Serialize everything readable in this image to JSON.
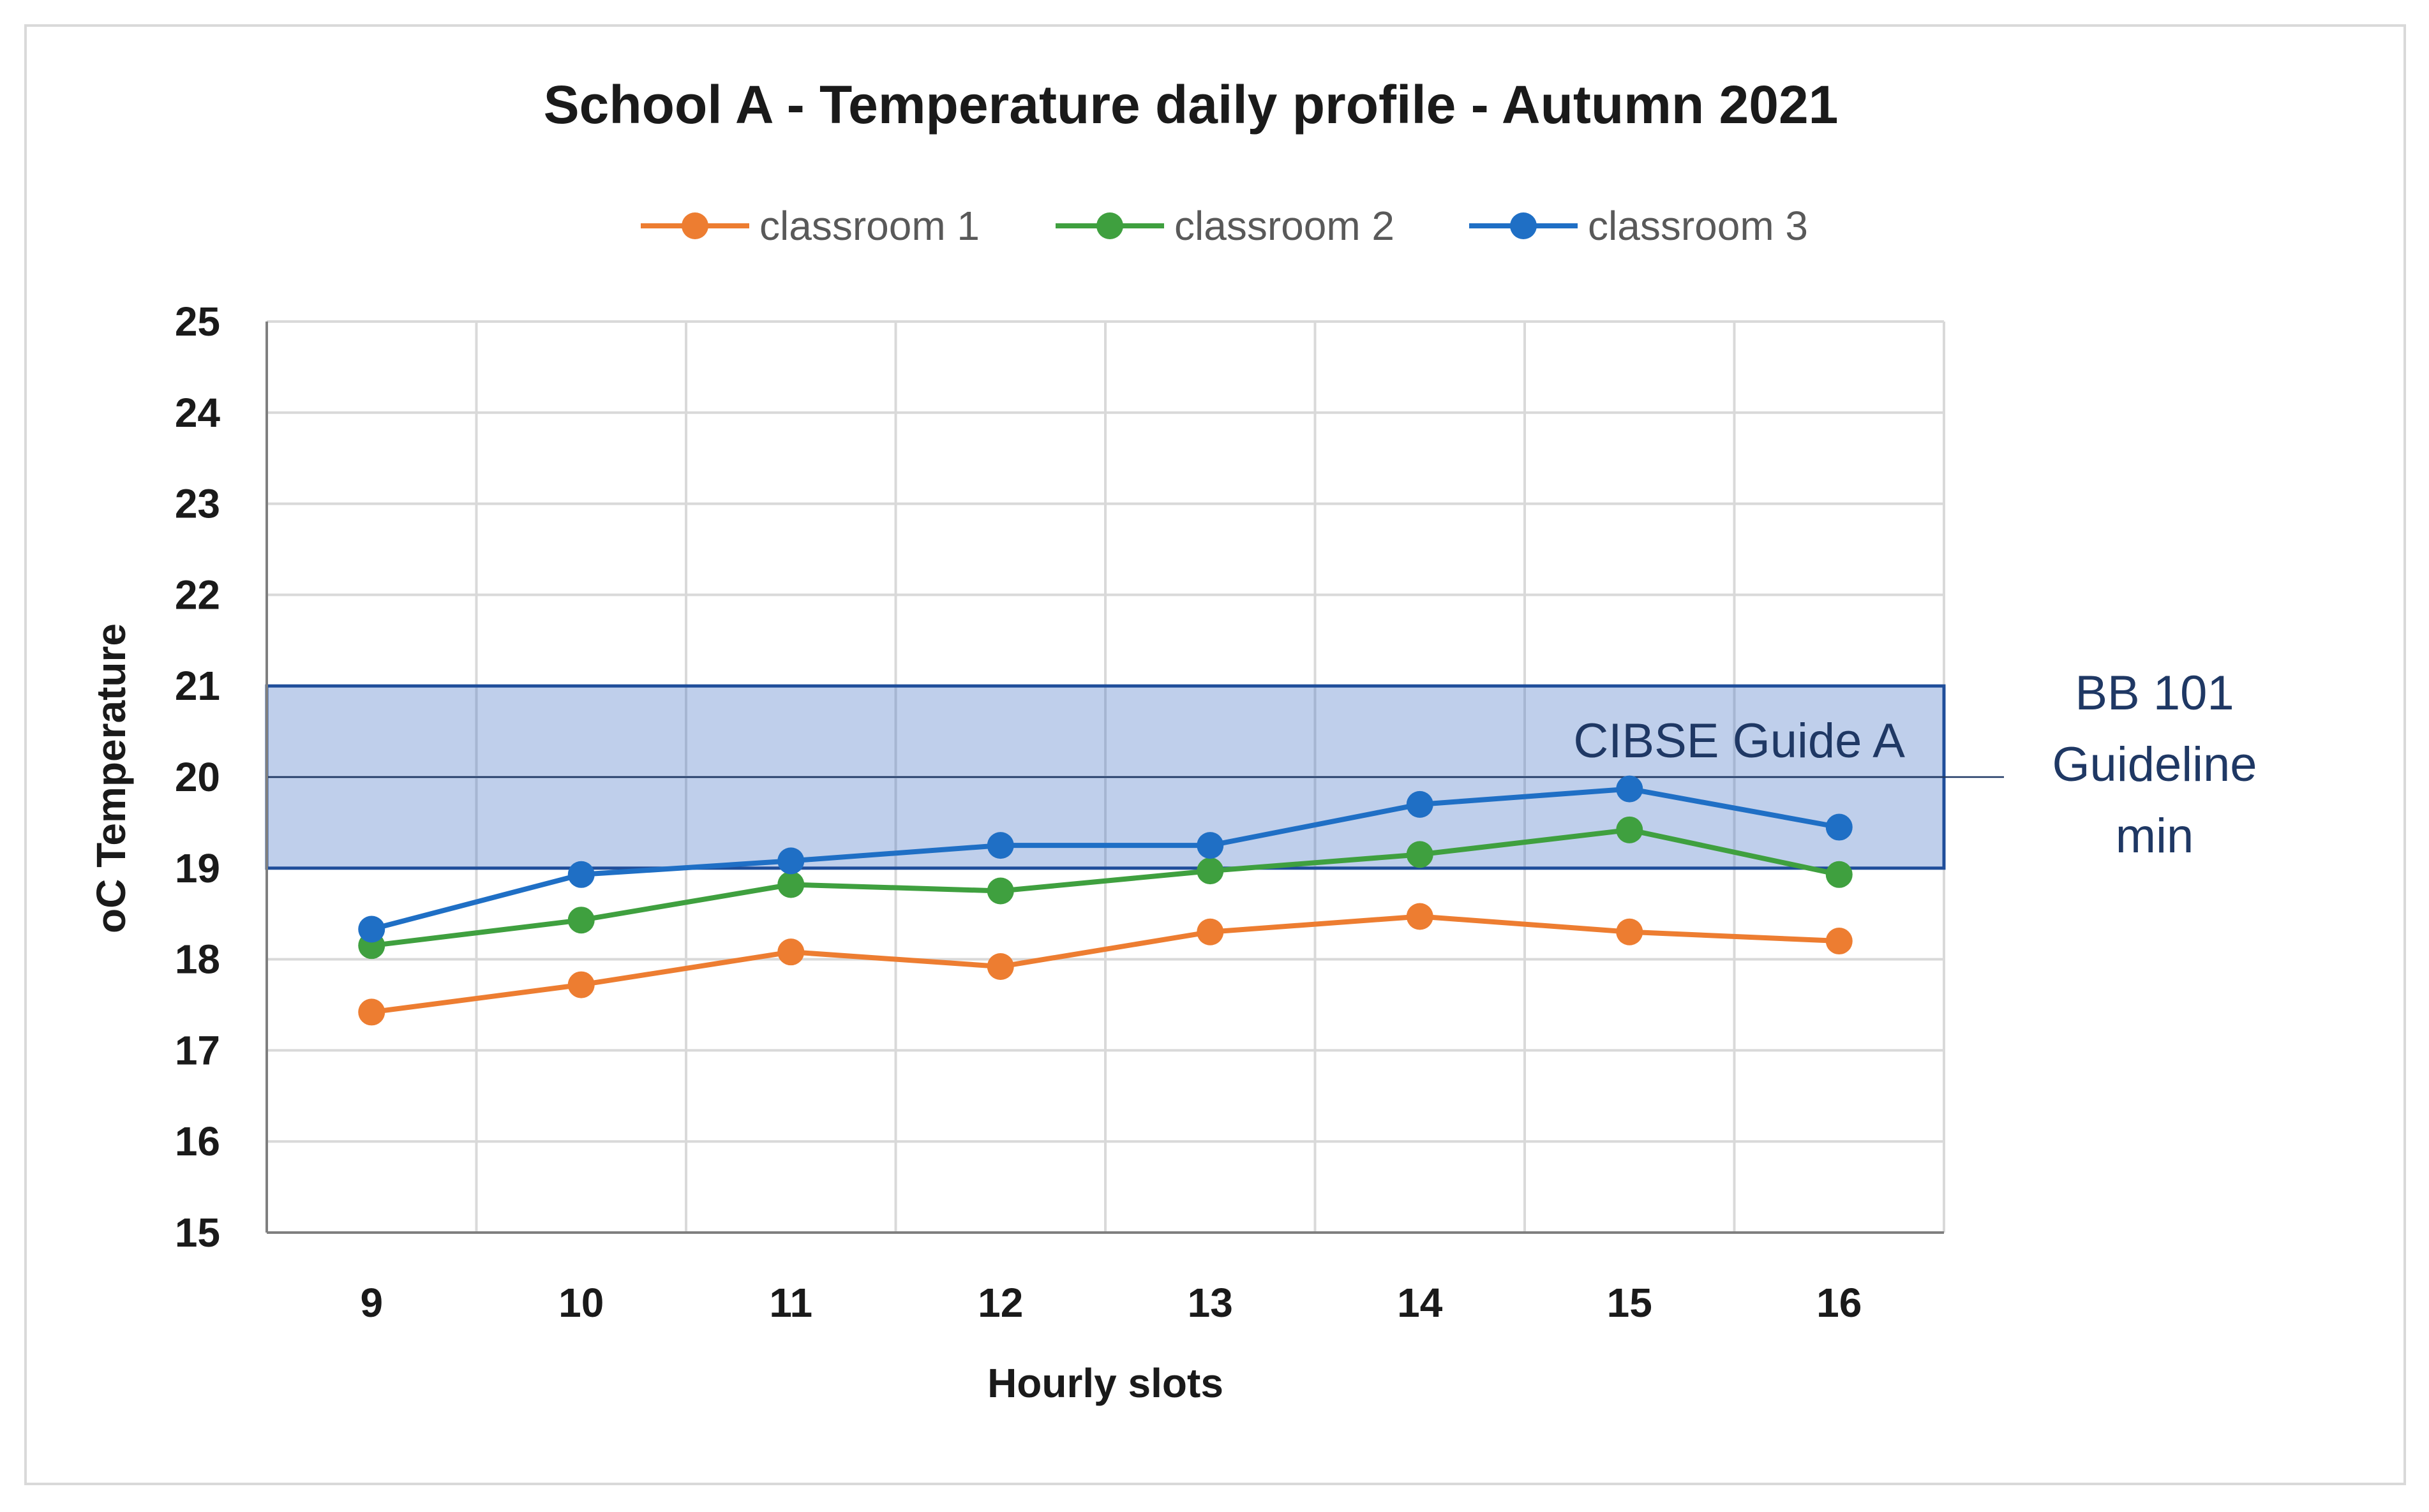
{
  "chart_data": {
    "type": "line",
    "title": "School A - Temperature daily profile - Autumn 2021",
    "xlabel": "Hourly slots",
    "ylabel": "oC Temperature",
    "categories": [
      "9",
      "10",
      "11",
      "12",
      "13",
      "14",
      "15",
      "16"
    ],
    "ylim": [
      15,
      25
    ],
    "yticks": [
      "15",
      "16",
      "17",
      "18",
      "19",
      "20",
      "21",
      "22",
      "23",
      "24",
      "25"
    ],
    "grid": true,
    "legend_position": "top-center",
    "series": [
      {
        "name": "classroom 1",
        "color": "#ed7d31",
        "values": [
          17.42,
          17.72,
          18.08,
          17.92,
          18.3,
          18.47,
          18.3,
          18.2
        ]
      },
      {
        "name": "classroom 2",
        "color": "#3fa03f",
        "values": [
          18.15,
          18.43,
          18.82,
          18.75,
          18.97,
          19.15,
          19.42,
          18.93
        ]
      },
      {
        "name": "classroom 3",
        "color": "#1f6fc5",
        "values": [
          18.33,
          18.93,
          19.08,
          19.25,
          19.25,
          19.7,
          19.87,
          19.45
        ]
      }
    ],
    "band": {
      "label": "CIBSE Guide A",
      "y_min": 19,
      "y_max": 21,
      "color": "#4472c4"
    },
    "guideline": {
      "label_lines": [
        "BB 101",
        "Guideline",
        "min"
      ],
      "y": 20,
      "color": "#1f3864"
    }
  }
}
